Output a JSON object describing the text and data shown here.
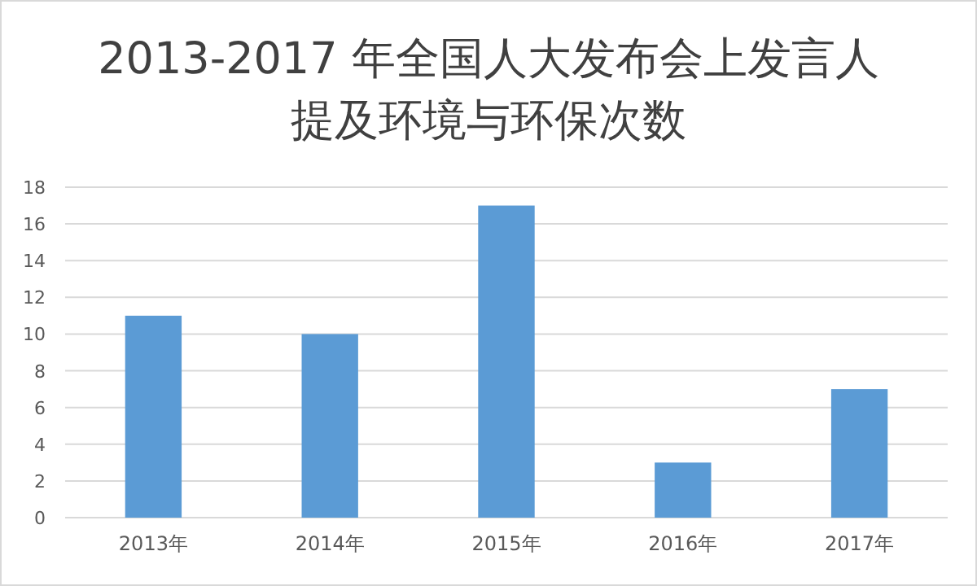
{
  "chart_data": {
    "type": "bar",
    "title": "2013-2017 年全国人大发布会上发言人提及环境与环保次数",
    "categories": [
      "2013年",
      "2014年",
      "2015年",
      "2016年",
      "2017年"
    ],
    "series": [
      {
        "color": "#5b9bd5",
        "values": [
          11,
          10,
          17,
          3,
          7
        ]
      }
    ],
    "ylim": [
      0,
      18
    ],
    "yticks": [
      0,
      2,
      4,
      6,
      8,
      10,
      12,
      14,
      16,
      18
    ],
    "grid": "y"
  }
}
